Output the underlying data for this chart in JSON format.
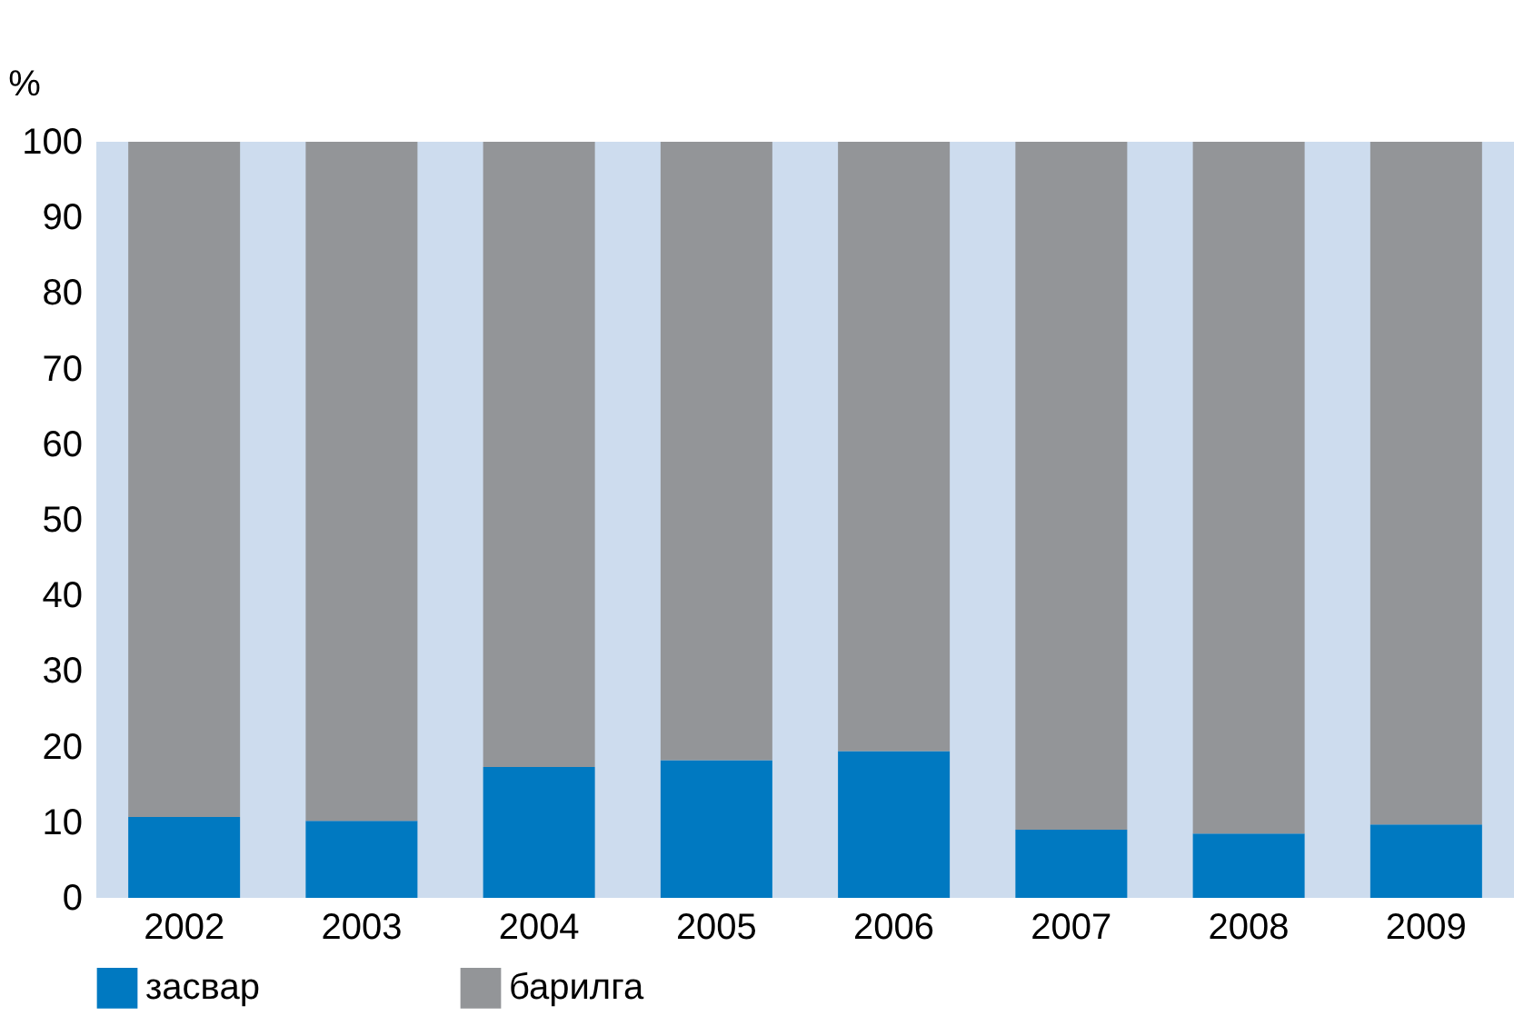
{
  "chart_data": {
    "type": "bar",
    "stacked": true,
    "ylabel": "%",
    "categories": [
      "2002",
      "2003",
      "2004",
      "2005",
      "2006",
      "2007",
      "2008",
      "2009"
    ],
    "series": [
      {
        "name": "засвар",
        "color": "#0079c1",
        "values": [
          10.7,
          10.2,
          17.3,
          18.2,
          19.4,
          9.0,
          8.5,
          9.7
        ]
      },
      {
        "name": "барилга",
        "color": "#939598",
        "values": [
          89.3,
          89.8,
          82.7,
          81.8,
          80.6,
          91.0,
          91.5,
          90.3
        ]
      }
    ],
    "bands": [
      {
        "axis": "y",
        "from": 0,
        "to": 100,
        "color": "#cddcee"
      }
    ],
    "ylim": [
      0,
      100
    ],
    "yticks": [
      0,
      10,
      20,
      30,
      40,
      50,
      60,
      70,
      80,
      90,
      100
    ],
    "grid": false,
    "legend": "bottom"
  }
}
